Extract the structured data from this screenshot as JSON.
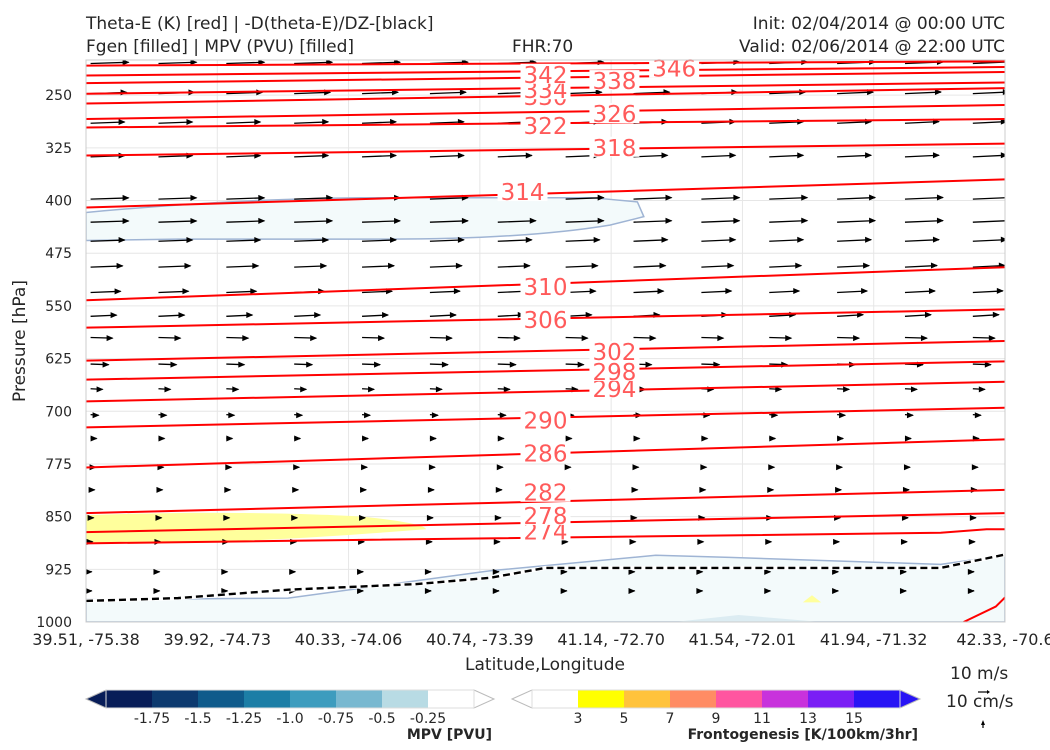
{
  "header": {
    "title_left_1": "Theta-E (K) [red] | -D(theta-E)/DZ-[black]",
    "title_left_2": "Fgen [filled] | MPV (PVU) [filled]",
    "fhr": "FHR:70",
    "init": "Init: 02/04/2014 @ 00:00 UTC",
    "valid": "Valid: 02/06/2014 @ 22:00 UTC"
  },
  "chart_data": {
    "type": "cross-section",
    "xlabel": "Latitude,Longitude",
    "ylabel": "Pressure [hPa]",
    "x_ticks": [
      "39.51, -75.38",
      "39.92, -74.73",
      "40.33, -74.06",
      "40.74, -73.39",
      "41.14, -72.70",
      "41.54, -72.01",
      "41.94, -71.32",
      "42.33, -70.6"
    ],
    "y_ticks": [
      250,
      325,
      400,
      475,
      550,
      625,
      700,
      775,
      850,
      925,
      1000
    ],
    "ylim": [
      1000,
      200
    ],
    "y_scale": "linear-inverted",
    "theta_e": {
      "color": "#ff0000",
      "label_color": "#ff5a5a",
      "levels": [
        {
          "v": 274,
          "left": 888,
          "right": 870
        },
        {
          "v": 278,
          "left": 872,
          "right": 845
        },
        {
          "v": 282,
          "left": 845,
          "right": 812
        },
        {
          "v": 286,
          "left": 780,
          "right": 740
        },
        {
          "v": 290,
          "left": 723,
          "right": 695
        },
        {
          "v": 294,
          "left": 686,
          "right": 658
        },
        {
          "v": 298,
          "left": 655,
          "right": 629
        },
        {
          "v": 302,
          "left": 628,
          "right": 600
        },
        {
          "v": 306,
          "left": 581,
          "right": 555
        },
        {
          "v": 310,
          "left": 542,
          "right": 495
        },
        {
          "v": 314,
          "left": 410,
          "right": 370
        },
        {
          "v": 318,
          "left": 336,
          "right": 319
        },
        {
          "v": 322,
          "left": 296,
          "right": 284
        },
        {
          "v": 326,
          "left": 284,
          "right": 264
        },
        {
          "v": 330,
          "left": 262,
          "right": 240
        },
        {
          "v": 334,
          "left": 248,
          "right": 232
        },
        {
          "v": 338,
          "left": 233,
          "right": 217
        },
        {
          "v": 342,
          "left": 222,
          "right": 210
        },
        {
          "v": 346,
          "left": 208,
          "right": 202
        }
      ],
      "labels": [
        {
          "v": "274",
          "x": 0.5,
          "p": 871
        },
        {
          "v": "278",
          "x": 0.5,
          "p": 849
        },
        {
          "v": "282",
          "x": 0.5,
          "p": 816
        },
        {
          "v": "286",
          "x": 0.5,
          "p": 760
        },
        {
          "v": "290",
          "x": 0.5,
          "p": 713
        },
        {
          "v": "294",
          "x": 0.575,
          "p": 668
        },
        {
          "v": "298",
          "x": 0.575,
          "p": 644
        },
        {
          "v": "302",
          "x": 0.575,
          "p": 616
        },
        {
          "v": "306",
          "x": 0.5,
          "p": 570
        },
        {
          "v": "310",
          "x": 0.5,
          "p": 523
        },
        {
          "v": "314",
          "x": 0.475,
          "p": 388
        },
        {
          "v": "318",
          "x": 0.575,
          "p": 325
        },
        {
          "v": "322",
          "x": 0.5,
          "p": 294
        },
        {
          "v": "326",
          "x": 0.575,
          "p": 277
        },
        {
          "v": "330",
          "x": 0.5,
          "p": 253
        },
        {
          "v": "334",
          "x": 0.5,
          "p": 243
        },
        {
          "v": "338",
          "x": 0.575,
          "p": 230
        },
        {
          "v": "342",
          "x": 0.5,
          "p": 221
        },
        {
          "v": "346",
          "x": 0.64,
          "p": 212
        }
      ]
    },
    "mpv_region": {
      "color": "#f3fafb",
      "edge": "#9fb4d4",
      "x": [
        0.0,
        0.6,
        0.0
      ],
      "p": [
        400,
        425,
        455
      ],
      "value": "-0.25"
    },
    "low_level_region": {
      "color": "#f3fafb",
      "edge": "#9fb4d4"
    },
    "stability_line": {
      "color": "#000000",
      "style": "dashed",
      "x": [
        0.0,
        0.1,
        0.22,
        0.36,
        0.44,
        0.5,
        0.75,
        0.93,
        1.0
      ],
      "p": [
        970,
        966,
        954,
        946,
        937,
        923,
        923,
        923,
        904
      ]
    },
    "fgen_region": {
      "color": "#ffff9c",
      "x": [
        0.0,
        0.25,
        0.37,
        0.0
      ],
      "p": [
        845,
        843,
        869,
        892
      ],
      "value": "3"
    },
    "wind": {
      "unit_label": "10 m/s",
      "unit_label_2": "10 cm/s",
      "color": "#000000"
    },
    "mpv_colorbar": {
      "label": "MPV [PVU]",
      "colors": [
        "#081d58",
        "#0d3a6f",
        "#0f5b8b",
        "#1c7ea6",
        "#3d9cbe",
        "#78b8d0",
        "#b8dbe4",
        "#ffffff"
      ],
      "ticks": [
        "-1.75",
        "-1.5",
        "-1.25",
        "-1.0",
        "-0.75",
        "-0.5",
        "-0.25"
      ]
    },
    "fgen_colorbar": {
      "label": "Frontogenesis [K/100km/3hr]",
      "colors": [
        "#ffffff",
        "#ffff00",
        "#ffc33c",
        "#ff8c64",
        "#ff55a0",
        "#c832dc",
        "#7a1ef5",
        "#2814f5"
      ],
      "ticks": [
        "3",
        "5",
        "7",
        "9",
        "11",
        "13",
        "15"
      ]
    }
  }
}
